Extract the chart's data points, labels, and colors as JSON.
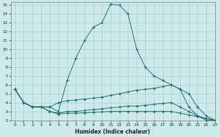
{
  "xlabel": "Humidex (Indice chaleur)",
  "background_color": "#cceaea",
  "grid_color": "#aacccc",
  "line_color": "#1a6b6b",
  "xlim": [
    -0.5,
    23
  ],
  "ylim": [
    2,
    15.3
  ],
  "xticks": [
    0,
    1,
    2,
    3,
    4,
    5,
    6,
    7,
    8,
    9,
    10,
    11,
    12,
    13,
    14,
    15,
    16,
    17,
    18,
    19,
    20,
    21,
    22,
    23
  ],
  "yticks": [
    2,
    3,
    4,
    5,
    6,
    7,
    8,
    9,
    10,
    11,
    12,
    13,
    14,
    15
  ],
  "line1_x": [
    0,
    1,
    2,
    3,
    4,
    5,
    6,
    7,
    8,
    9,
    10,
    11,
    12,
    13,
    14,
    15,
    16,
    17,
    18,
    19,
    20,
    21,
    22,
    23
  ],
  "line1_y": [
    5.5,
    4.0,
    3.5,
    3.5,
    3.5,
    3.0,
    6.5,
    9.0,
    11.0,
    12.5,
    13.0,
    15.1,
    15.0,
    14.0,
    10.0,
    8.0,
    7.0,
    6.5,
    6.0,
    5.5,
    3.5,
    2.5,
    2.0,
    2.0
  ],
  "line2_x": [
    0,
    1,
    2,
    3,
    4,
    5,
    6,
    7,
    8,
    9,
    10,
    11,
    12,
    13,
    14,
    15,
    16,
    17,
    18,
    19,
    20,
    21,
    22,
    23
  ],
  "line2_y": [
    5.5,
    4.0,
    3.5,
    3.5,
    3.5,
    4.0,
    4.2,
    4.3,
    4.4,
    4.5,
    4.6,
    4.8,
    5.0,
    5.2,
    5.4,
    5.5,
    5.6,
    5.8,
    6.0,
    5.5,
    5.0,
    3.5,
    2.5,
    2.0
  ],
  "line3_x": [
    0,
    1,
    2,
    3,
    4,
    5,
    6,
    7,
    8,
    9,
    10,
    11,
    12,
    13,
    14,
    15,
    16,
    17,
    18,
    19,
    20,
    21,
    22,
    23
  ],
  "line3_y": [
    5.5,
    4.0,
    3.5,
    3.5,
    3.0,
    2.8,
    3.0,
    3.0,
    3.1,
    3.2,
    3.3,
    3.4,
    3.5,
    3.6,
    3.6,
    3.7,
    3.8,
    3.9,
    4.0,
    3.5,
    3.0,
    2.5,
    2.2,
    2.0
  ],
  "line4_x": [
    0,
    1,
    2,
    3,
    4,
    5,
    6,
    7,
    8,
    9,
    10,
    11,
    12,
    13,
    14,
    15,
    16,
    17,
    18,
    19,
    20,
    21,
    22,
    23
  ],
  "line4_y": [
    5.5,
    4.0,
    3.5,
    3.5,
    3.0,
    2.7,
    2.8,
    2.8,
    2.85,
    2.9,
    2.95,
    3.0,
    3.0,
    3.0,
    3.0,
    3.0,
    3.0,
    3.0,
    3.0,
    2.8,
    2.6,
    2.4,
    2.2,
    2.0
  ]
}
